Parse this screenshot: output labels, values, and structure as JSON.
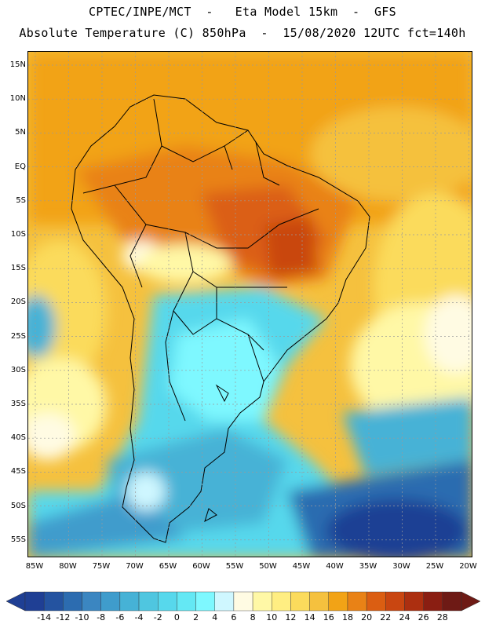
{
  "header": {
    "line1": "CPTEC/INPE/MCT  -   Eta Model 15km  -  GFS",
    "line2": "Absolute Temperature (C) 850hPa  -  15/08/2020 12UTC fct=140h"
  },
  "axes": {
    "latitude_labels": [
      "15N",
      "10N",
      "5N",
      "EQ",
      "5S",
      "10S",
      "15S",
      "20S",
      "25S",
      "30S",
      "35S",
      "40S",
      "45S",
      "50S",
      "55S"
    ],
    "longitude_labels": [
      "85W",
      "80W",
      "75W",
      "70W",
      "65W",
      "60W",
      "55W",
      "50W",
      "45W",
      "40W",
      "35W",
      "30W",
      "25W",
      "20W"
    ]
  },
  "colorbar": {
    "labels": [
      "-14",
      "-12",
      "-10",
      "-8",
      "-6",
      "-4",
      "-2",
      "0",
      "2",
      "4",
      "6",
      "8",
      "10",
      "12",
      "14",
      "16",
      "18",
      "20",
      "22",
      "24",
      "26",
      "28"
    ],
    "colors": [
      "#1f3f94",
      "#2453a0",
      "#2c6cb0",
      "#3b86c1",
      "#3f9ccc",
      "#46b2d6",
      "#4fc6e0",
      "#57d8ec",
      "#64e8f4",
      "#7ef8ff",
      "#cff7ff",
      "#fffbe3",
      "#fff8a6",
      "#ffee82",
      "#fbdb5c",
      "#f5c13e",
      "#f2a316",
      "#e98216",
      "#db5e12",
      "#c94611",
      "#ac2f10",
      "#8a1e12",
      "#6e1a15"
    ]
  },
  "map": {
    "region": "South America",
    "variable": "Absolute Temperature (C)",
    "level": "850hPa"
  }
}
